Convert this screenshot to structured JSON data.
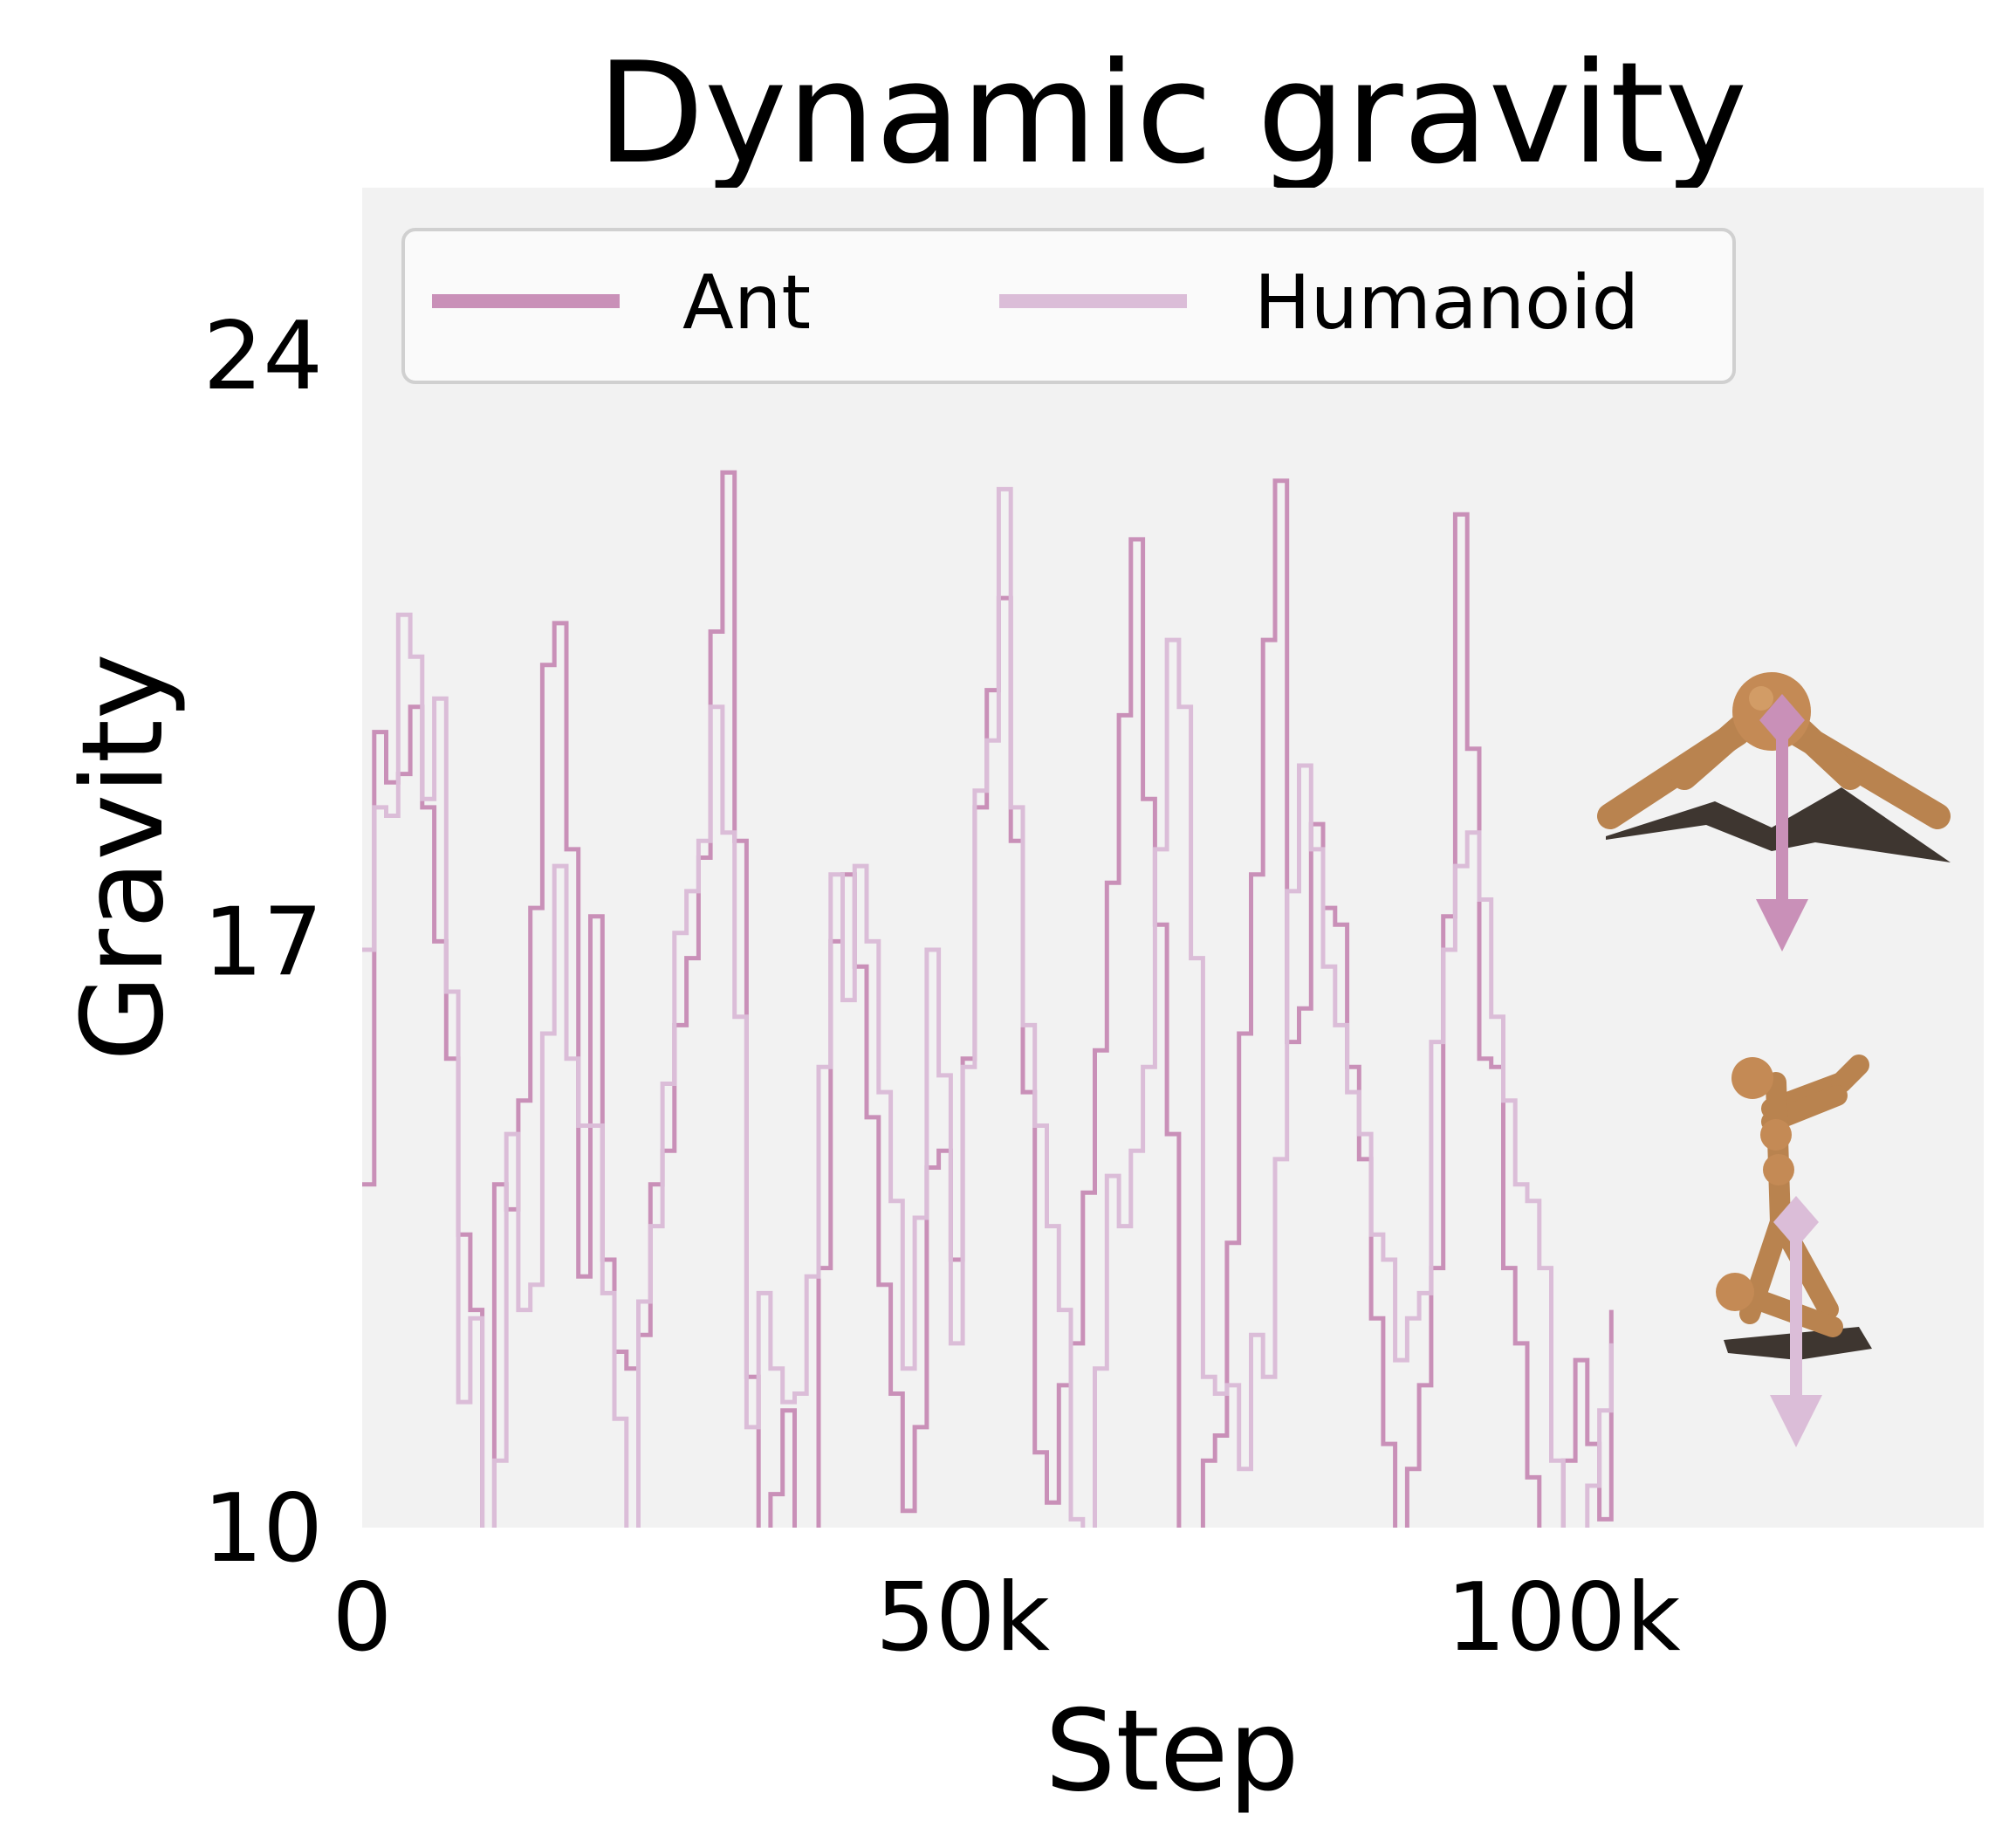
{
  "chart_data": {
    "type": "line",
    "title": "Dynamic gravity",
    "xlabel": "Step",
    "ylabel": "Gravity",
    "xlim": [
      0,
      135000
    ],
    "ylim": [
      10,
      26
    ],
    "xticks": [
      0,
      50000,
      100000
    ],
    "xtick_labels": [
      "0",
      "50k",
      "100k"
    ],
    "yticks": [
      10,
      17,
      24
    ],
    "ytick_labels": [
      "10",
      "17",
      "24"
    ],
    "grid": false,
    "legend": {
      "placement": "top",
      "columns": 2
    },
    "line_style": "steps",
    "x": [
      0,
      1000,
      2000,
      3000,
      4000,
      5000,
      6000,
      7000,
      8000,
      9000,
      10000,
      11000,
      12000,
      13000,
      14000,
      15000,
      16000,
      17000,
      18000,
      19000,
      20000,
      21000,
      22000,
      23000,
      24000,
      25000,
      26000,
      27000,
      28000,
      29000,
      30000,
      31000,
      32000,
      33000,
      34000,
      35000,
      36000,
      37000,
      38000,
      39000,
      40000,
      41000,
      42000,
      43000,
      44000,
      45000,
      46000,
      47000,
      48000,
      49000,
      50000,
      51000,
      52000,
      53000,
      54000,
      55000,
      56000,
      57000,
      58000,
      59000,
      60000,
      61000,
      62000,
      63000,
      64000,
      65000,
      66000,
      67000,
      68000,
      69000,
      70000,
      71000,
      72000,
      73000,
      74000,
      75000,
      76000,
      77000,
      78000,
      79000,
      80000,
      81000,
      82000,
      83000,
      84000,
      85000,
      86000,
      87000,
      88000,
      89000,
      90000,
      91000,
      92000,
      93000,
      94000,
      95000,
      96000,
      97000,
      98000,
      99000,
      100000,
      101000,
      102000,
      103000,
      104000
    ],
    "series": [
      {
        "name": "Ant",
        "color": "#c990b8",
        "values": [
          14.1,
          19.5,
          18.9,
          19.0,
          19.8,
          18.6,
          17.0,
          15.6,
          13.5,
          12.6,
          9.6,
          14.1,
          13.8,
          15.1,
          17.4,
          20.3,
          20.8,
          18.1,
          13.0,
          17.3,
          13.2,
          12.1,
          11.9,
          12.3,
          14.1,
          14.5,
          16.0,
          16.8,
          18.0,
          20.7,
          22.6,
          18.2,
          11.8,
          9.8,
          10.4,
          11.4,
          9.8,
          9.6,
          13.1,
          17.0,
          17.8,
          16.7,
          14.9,
          12.9,
          11.6,
          10.2,
          11.2,
          14.3,
          14.5,
          13.2,
          15.6,
          18.6,
          20.0,
          21.1,
          18.2,
          15.2,
          10.9,
          10.3,
          11.7,
          12.2,
          14.0,
          15.7,
          17.7,
          19.7,
          21.8,
          18.7,
          17.2,
          14.7,
          9.8,
          9.1,
          10.8,
          11.1,
          13.4,
          15.9,
          17.8,
          20.6,
          22.5,
          15.8,
          16.2,
          18.4,
          17.4,
          17.2,
          15.5,
          14.4,
          12.5,
          11.0,
          9.7,
          10.7,
          11.7,
          13.1,
          17.3,
          22.1,
          19.3,
          15.6,
          15.5,
          13.1,
          12.2,
          10.6,
          9.2,
          9.8,
          10.8,
          12.0,
          11.0,
          10.1,
          12.6
        ]
      },
      {
        "name": "Humanoid",
        "color": "#dbbdd8",
        "values": [
          16.9,
          18.6,
          18.5,
          20.9,
          20.4,
          18.7,
          19.9,
          16.4,
          11.5,
          12.5,
          9.1,
          10.8,
          14.7,
          12.6,
          12.9,
          15.9,
          17.9,
          15.6,
          14.8,
          14.8,
          12.8,
          11.3,
          9.5,
          12.7,
          13.6,
          15.3,
          17.1,
          17.6,
          18.2,
          19.8,
          18.3,
          16.1,
          11.2,
          12.8,
          11.9,
          11.5,
          11.6,
          13.0,
          15.5,
          17.8,
          16.3,
          17.9,
          17.0,
          15.2,
          13.9,
          11.9,
          13.7,
          16.9,
          15.4,
          12.2,
          15.5,
          18.8,
          19.4,
          22.4,
          18.6,
          16.0,
          14.8,
          13.6,
          12.6,
          10.1,
          9.4,
          11.9,
          14.2,
          13.6,
          14.5,
          15.5,
          18.1,
          20.6,
          19.8,
          16.8,
          11.8,
          11.6,
          11.7,
          10.7,
          12.3,
          11.8,
          14.4,
          17.6,
          19.1,
          18.1,
          16.7,
          16.0,
          15.2,
          14.7,
          13.5,
          13.2,
          12.0,
          12.5,
          12.8,
          15.8,
          16.9,
          17.9,
          18.3,
          17.5,
          16.1,
          15.1,
          14.1,
          13.9,
          13.1,
          10.8,
          9.4,
          9.2,
          10.5,
          11.4,
          12.2
        ]
      }
    ]
  }
}
